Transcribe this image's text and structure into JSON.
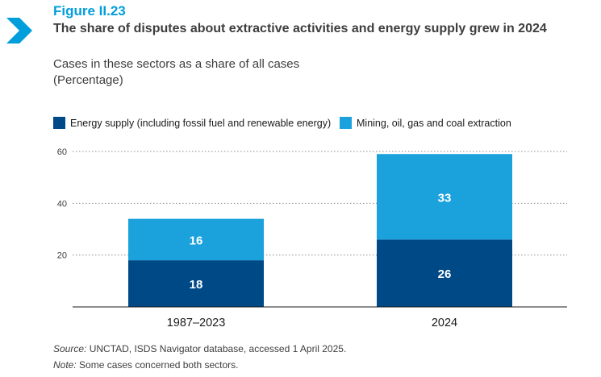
{
  "figure": {
    "label": "Figure II.23",
    "title": "The share of disputes about extractive activities and energy supply grew in 2024",
    "subtitle": "Cases in these sectors as a share of all cases",
    "unit": "(Percentage)",
    "icon": "chevron-right-icon"
  },
  "colors": {
    "accent": "#009edb",
    "energy": "#004987",
    "mining": "#1ba1dc"
  },
  "chart_data": {
    "type": "bar",
    "stacked": true,
    "categories": [
      "1987–2023",
      "2024"
    ],
    "series": [
      {
        "name": "Energy supply (including fossil fuel and renewable energy)",
        "values": [
          18,
          26
        ],
        "color": "#004987"
      },
      {
        "name": "Mining, oil, gas and coal extraction",
        "values": [
          16,
          33
        ],
        "color": "#1ba1dc"
      }
    ],
    "yticks": [
      20,
      40,
      60
    ],
    "ylim": [
      0,
      60
    ],
    "grid": "dotted horizontal",
    "legend_position": "top-left"
  },
  "footnotes": {
    "source_label": "Source:",
    "source_text": " UNCTAD, ISDS Navigator database, accessed 1 April 2025.",
    "note_label": "Note:",
    "note_text": " Some cases concerned both sectors."
  }
}
